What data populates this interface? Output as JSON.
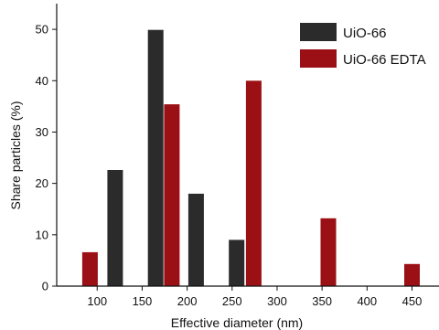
{
  "chart_data": {
    "type": "bar",
    "title": "",
    "xlabel": "Effective diameter (nm)",
    "ylabel": "Share particles (%)",
    "xlim": [
      55,
      480
    ],
    "ylim": [
      0,
      55
    ],
    "x_ticks": [
      100,
      150,
      200,
      250,
      300,
      350,
      400,
      450
    ],
    "y_ticks": [
      0,
      10,
      20,
      30,
      40,
      50
    ],
    "bar_width": 17,
    "grid": false,
    "legend_position": "top-right",
    "series": [
      {
        "name": "UiO-66",
        "color": "#2b2b2b",
        "x": [
          120,
          165,
          210,
          255
        ],
        "values": [
          22.6,
          49.9,
          18.0,
          9.0
        ]
      },
      {
        "name": "UiO-66 EDTA",
        "color": "#9b1015",
        "x": [
          92,
          183,
          274,
          357,
          450
        ],
        "values": [
          6.6,
          35.4,
          40.0,
          13.2,
          4.3
        ]
      }
    ]
  }
}
